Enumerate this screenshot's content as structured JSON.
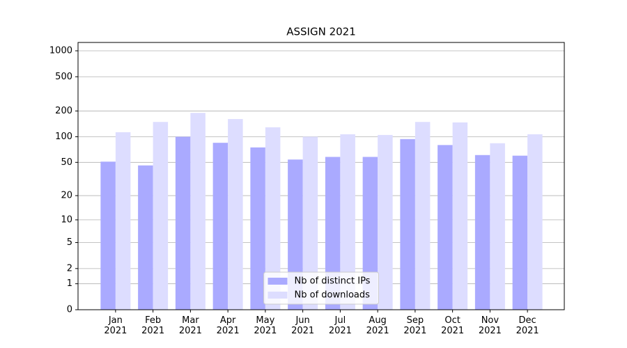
{
  "chart_data": {
    "type": "bar",
    "title": "ASSIGN 2021",
    "categories": [
      "Jan\n2021",
      "Feb\n2021",
      "Mar\n2021",
      "Apr\n2021",
      "May\n2021",
      "Jun\n2021",
      "Jul\n2021",
      "Aug\n2021",
      "Sep\n2021",
      "Oct\n2021",
      "Nov\n2021",
      "Dec\n2021"
    ],
    "series": [
      {
        "name": "Nb of distinct IPs",
        "color": "#aaaaff",
        "values": [
          51,
          46,
          100,
          85,
          75,
          54,
          58,
          58,
          94,
          80,
          61,
          60
        ]
      },
      {
        "name": "Nb of downloads",
        "color": "#ddddff",
        "values": [
          113,
          149,
          190,
          161,
          129,
          100,
          107,
          105,
          149,
          147,
          84,
          107
        ]
      }
    ],
    "yscale": "log1p",
    "ylim": [
      0,
      1250
    ],
    "yticks": [
      0,
      1,
      2,
      5,
      10,
      20,
      50,
      100,
      200,
      500,
      1000
    ],
    "grid": true,
    "legend": "lower center"
  }
}
